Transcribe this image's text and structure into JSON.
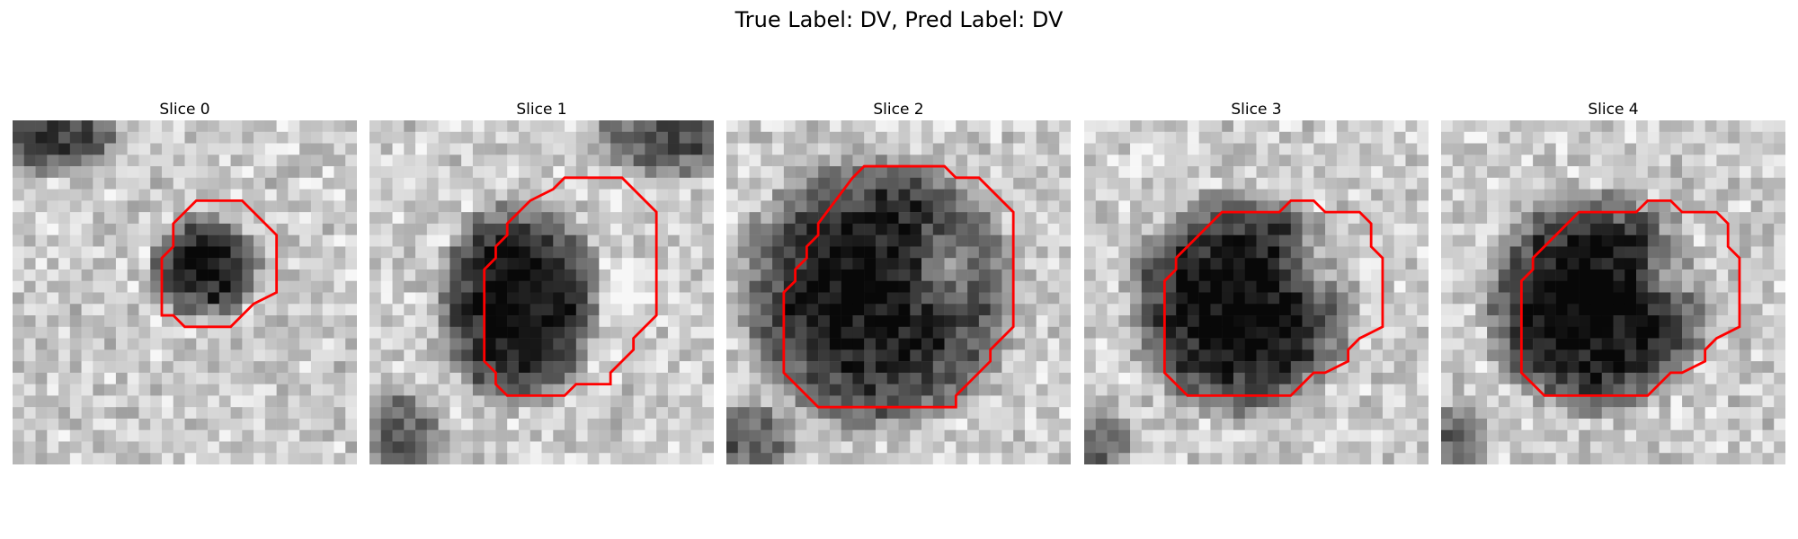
{
  "figure": {
    "title": "True Label: DV, Pred Label: DV"
  },
  "panels": [
    {
      "title": "Slice 0",
      "contour": [
        [
          16,
          7
        ],
        [
          20,
          7
        ],
        [
          23,
          10
        ],
        [
          23,
          15
        ],
        [
          21,
          16
        ],
        [
          20,
          17
        ],
        [
          19,
          18
        ],
        [
          15,
          18
        ],
        [
          14,
          17
        ],
        [
          13,
          17
        ],
        [
          13,
          12
        ],
        [
          14,
          11
        ],
        [
          14,
          9
        ]
      ],
      "dark": {
        "cx": 16.7,
        "cy": 12.8,
        "rx": 4.2,
        "ry": 4.0,
        "depth": 0.7
      },
      "bright": [],
      "extra": [
        {
          "cx": 3,
          "cy": 1.5,
          "rx": 6,
          "ry": 3,
          "depth": 0.55
        }
      ]
    },
    {
      "title": "Slice 1",
      "contour": [
        [
          16,
          6
        ],
        [
          17,
          5
        ],
        [
          22,
          5
        ],
        [
          25,
          8
        ],
        [
          25,
          17
        ],
        [
          23,
          19
        ],
        [
          23,
          20
        ],
        [
          21,
          22
        ],
        [
          21,
          23
        ],
        [
          18,
          23
        ],
        [
          17,
          24
        ],
        [
          12,
          24
        ],
        [
          11,
          23
        ],
        [
          11,
          22
        ],
        [
          10,
          21
        ],
        [
          10,
          13
        ],
        [
          11,
          12
        ],
        [
          11,
          11
        ],
        [
          12,
          10
        ],
        [
          12,
          9
        ],
        [
          14,
          7
        ]
      ],
      "dark": {
        "cx": 13.0,
        "cy": 16.0,
        "rx": 6.2,
        "ry": 7.8,
        "depth": 0.78
      },
      "bright": [
        {
          "cx": 22,
          "cy": 15,
          "rx": 3,
          "ry": 4,
          "amt": 0.35
        }
      ],
      "extra": [
        {
          "cx": 26,
          "cy": 1.5,
          "rx": 6,
          "ry": 3,
          "depth": 0.5
        },
        {
          "cx": 3,
          "cy": 28,
          "rx": 3,
          "ry": 4,
          "depth": 0.45
        }
      ]
    },
    {
      "title": "Slice 2",
      "contour": [
        [
          11,
          5
        ],
        [
          12,
          4
        ],
        [
          19,
          4
        ],
        [
          20,
          5
        ],
        [
          22,
          5
        ],
        [
          25,
          8
        ],
        [
          25,
          18
        ],
        [
          23,
          20
        ],
        [
          23,
          21
        ],
        [
          20,
          24
        ],
        [
          20,
          25
        ],
        [
          8,
          25
        ],
        [
          5,
          22
        ],
        [
          5,
          15
        ],
        [
          6,
          14
        ],
        [
          6,
          13
        ],
        [
          7,
          12
        ],
        [
          7,
          11
        ],
        [
          8,
          10
        ],
        [
          8,
          9
        ]
      ],
      "dark": {
        "cx": 13.0,
        "cy": 15.0,
        "rx": 10.5,
        "ry": 10.5,
        "depth": 0.75
      },
      "bright": [
        {
          "cx": 19,
          "cy": 13,
          "rx": 4,
          "ry": 5,
          "amt": 0.45
        }
      ],
      "extra": [
        {
          "cx": 2,
          "cy": 28,
          "rx": 4,
          "ry": 3,
          "depth": 0.4
        }
      ]
    },
    {
      "title": "Slice 3",
      "contour": [
        [
          12,
          8
        ],
        [
          17,
          8
        ],
        [
          18,
          7
        ],
        [
          20,
          7
        ],
        [
          21,
          8
        ],
        [
          24,
          8
        ],
        [
          25,
          9
        ],
        [
          25,
          11
        ],
        [
          26,
          12
        ],
        [
          26,
          18
        ],
        [
          24,
          19
        ],
        [
          23,
          20
        ],
        [
          23,
          21
        ],
        [
          21,
          22
        ],
        [
          20,
          22
        ],
        [
          18,
          24
        ],
        [
          9,
          24
        ],
        [
          7,
          22
        ],
        [
          7,
          14
        ],
        [
          8,
          13
        ],
        [
          8,
          12
        ],
        [
          11,
          9
        ]
      ],
      "dark": {
        "cx": 13.6,
        "cy": 16.0,
        "rx": 8.5,
        "ry": 8.5,
        "depth": 0.8
      },
      "bright": [
        {
          "cx": 20,
          "cy": 13,
          "rx": 3.5,
          "ry": 4.5,
          "amt": 0.45
        }
      ],
      "extra": [
        {
          "cx": 1,
          "cy": 28,
          "rx": 3,
          "ry": 3,
          "depth": 0.4
        }
      ]
    },
    {
      "title": "Slice 4",
      "contour": [
        [
          12,
          8
        ],
        [
          17,
          8
        ],
        [
          18,
          7
        ],
        [
          20,
          7
        ],
        [
          21,
          8
        ],
        [
          24,
          8
        ],
        [
          25,
          9
        ],
        [
          25,
          11
        ],
        [
          26,
          12
        ],
        [
          26,
          18
        ],
        [
          24,
          19
        ],
        [
          23,
          20
        ],
        [
          23,
          21
        ],
        [
          21,
          22
        ],
        [
          20,
          22
        ],
        [
          18,
          24
        ],
        [
          9,
          24
        ],
        [
          7,
          22
        ],
        [
          7,
          14
        ],
        [
          8,
          13
        ],
        [
          8,
          12
        ],
        [
          11,
          9
        ]
      ],
      "dark": {
        "cx": 13.6,
        "cy": 16.0,
        "rx": 8.5,
        "ry": 8.5,
        "depth": 0.8
      },
      "bright": [
        {
          "cx": 20,
          "cy": 13,
          "rx": 3.5,
          "ry": 4.5,
          "amt": 0.45
        }
      ],
      "extra": [
        {
          "cx": 1,
          "cy": 28,
          "rx": 3,
          "ry": 3,
          "depth": 0.4
        }
      ]
    }
  ],
  "colors": {
    "contour": "#ff0000"
  }
}
